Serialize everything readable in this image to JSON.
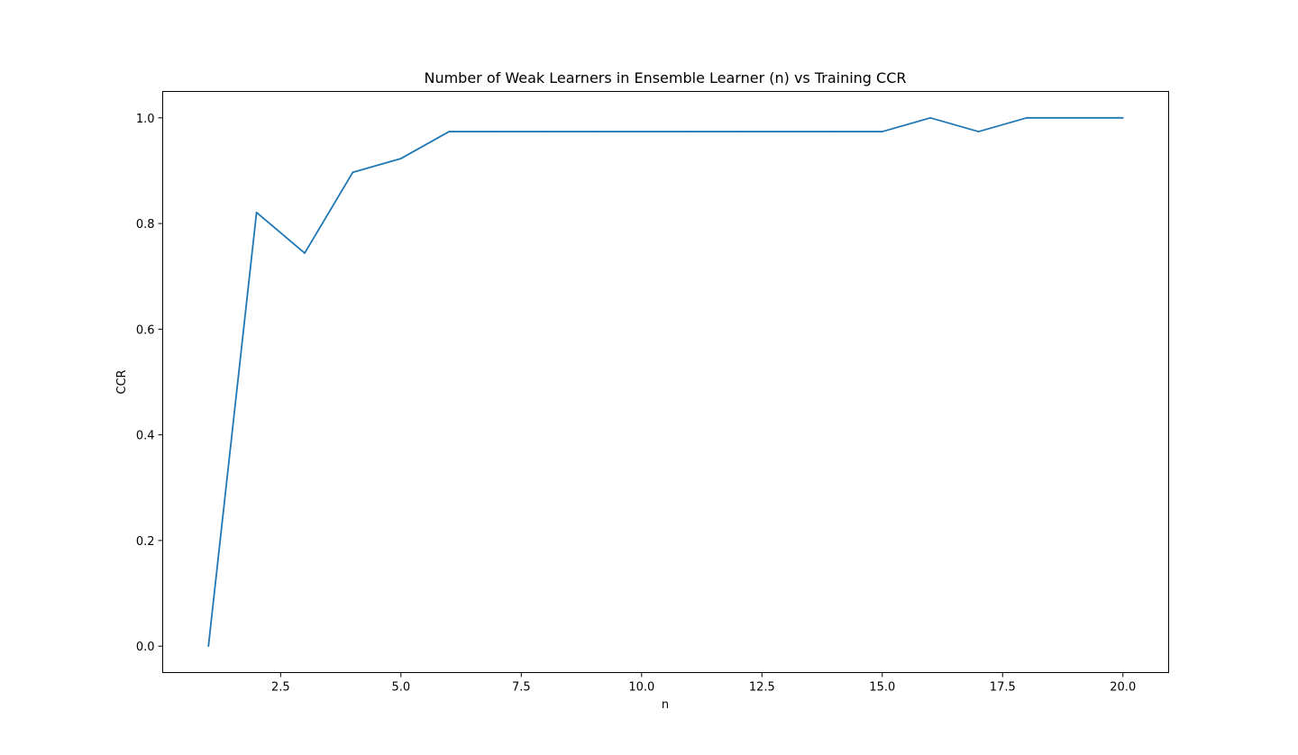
{
  "chart_data": {
    "type": "line",
    "title": "Number of Weak Learners in Ensemble Learner (n) vs Training CCR",
    "xlabel": "n",
    "ylabel": "CCR",
    "xlim": [
      0.05,
      20.95
    ],
    "ylim": [
      -0.05,
      1.05
    ],
    "x_ticks": [
      2.5,
      5.0,
      7.5,
      10.0,
      12.5,
      15.0,
      17.5,
      20.0
    ],
    "x_tick_labels": [
      "2.5",
      "5.0",
      "7.5",
      "10.0",
      "12.5",
      "15.0",
      "17.5",
      "20.0"
    ],
    "y_ticks": [
      0.0,
      0.2,
      0.4,
      0.6,
      0.8,
      1.0
    ],
    "y_tick_labels": [
      "0.0",
      "0.2",
      "0.4",
      "0.6",
      "0.8",
      "1.0"
    ],
    "grid": false,
    "series": [
      {
        "color": "#1f77b4",
        "x": [
          1,
          2,
          3,
          4,
          5,
          6,
          7,
          8,
          9,
          10,
          11,
          12,
          13,
          14,
          15,
          16,
          17,
          18,
          19,
          20
        ],
        "y": [
          0.0,
          0.821,
          0.744,
          0.897,
          0.923,
          0.974,
          0.974,
          0.974,
          0.974,
          0.974,
          0.974,
          0.974,
          0.974,
          0.974,
          0.974,
          1.0,
          0.974,
          1.0,
          1.0,
          1.0
        ]
      }
    ]
  }
}
